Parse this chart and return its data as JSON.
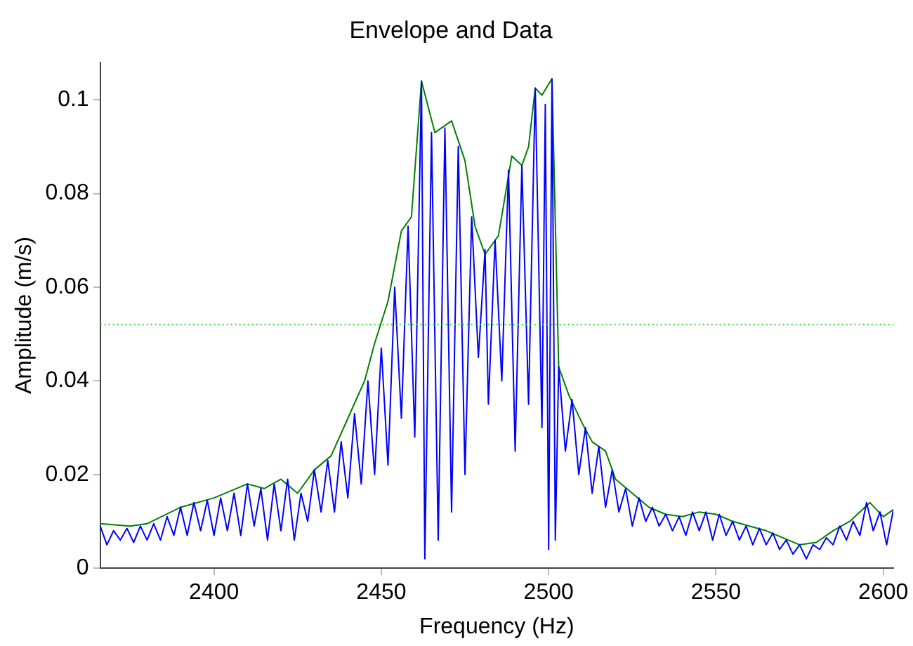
{
  "chart_data": {
    "type": "line",
    "title": "Envelope and Data",
    "xlabel": "Frequency (Hz)",
    "ylabel": "Amplitude (m/s)",
    "xlim": [
      2366,
      2603
    ],
    "xticks": [
      2400,
      2450,
      2500,
      2550,
      2600
    ],
    "ylim": [
      0,
      0.108
    ],
    "yticks": [
      0,
      0.02,
      0.04,
      0.06,
      0.08,
      0.1
    ],
    "grid": false,
    "legend": false,
    "marker": "none",
    "line_style": "solid",
    "ref_lines": [
      {
        "axis": "y",
        "value": 0.052,
        "color": "#33cc33",
        "line_style": "dotted"
      }
    ],
    "series": [
      {
        "color": "#0000ff",
        "x": [
          2366,
          2368,
          2370,
          2372,
          2374,
          2376,
          2378,
          2380,
          2382,
          2384,
          2386,
          2388,
          2390,
          2392,
          2394,
          2396,
          2398,
          2400,
          2402,
          2404,
          2406,
          2408,
          2410,
          2412,
          2414,
          2416,
          2418,
          2420,
          2422,
          2424,
          2426,
          2428,
          2430,
          2432,
          2434,
          2436,
          2438,
          2440,
          2442,
          2444,
          2446,
          2448,
          2450,
          2452,
          2454,
          2456,
          2458,
          2460,
          2462,
          2463,
          2465,
          2467,
          2469,
          2471,
          2473,
          2475,
          2477,
          2479,
          2481,
          2482,
          2484,
          2486,
          2488,
          2490,
          2492,
          2494,
          2496,
          2498,
          2499,
          2500,
          2501,
          2502,
          2503,
          2505,
          2507,
          2509,
          2511,
          2513,
          2515,
          2517,
          2519,
          2521,
          2523,
          2525,
          2527,
          2529,
          2531,
          2533,
          2535,
          2537,
          2539,
          2541,
          2543,
          2545,
          2547,
          2549,
          2551,
          2553,
          2555,
          2557,
          2559,
          2561,
          2563,
          2565,
          2567,
          2569,
          2571,
          2573,
          2575,
          2577,
          2579,
          2581,
          2583,
          2585,
          2587,
          2589,
          2591,
          2593,
          2595,
          2597,
          2599,
          2601,
          2603
        ],
        "values": [
          0.009,
          0.005,
          0.008,
          0.006,
          0.0085,
          0.0055,
          0.009,
          0.006,
          0.0095,
          0.006,
          0.011,
          0.007,
          0.013,
          0.007,
          0.014,
          0.008,
          0.0145,
          0.007,
          0.015,
          0.008,
          0.016,
          0.007,
          0.018,
          0.009,
          0.017,
          0.006,
          0.018,
          0.008,
          0.019,
          0.006,
          0.016,
          0.01,
          0.021,
          0.012,
          0.023,
          0.012,
          0.027,
          0.015,
          0.033,
          0.018,
          0.04,
          0.02,
          0.047,
          0.022,
          0.06,
          0.032,
          0.073,
          0.028,
          0.104,
          0.002,
          0.093,
          0.006,
          0.094,
          0.012,
          0.09,
          0.02,
          0.075,
          0.045,
          0.068,
          0.035,
          0.07,
          0.04,
          0.085,
          0.025,
          0.086,
          0.035,
          0.1025,
          0.03,
          0.099,
          0.004,
          0.1045,
          0.006,
          0.043,
          0.025,
          0.036,
          0.02,
          0.03,
          0.016,
          0.026,
          0.013,
          0.021,
          0.012,
          0.017,
          0.009,
          0.015,
          0.01,
          0.013,
          0.009,
          0.0115,
          0.008,
          0.011,
          0.007,
          0.012,
          0.008,
          0.012,
          0.006,
          0.0115,
          0.007,
          0.01,
          0.006,
          0.009,
          0.005,
          0.0085,
          0.005,
          0.0075,
          0.004,
          0.006,
          0.003,
          0.005,
          0.002,
          0.005,
          0.004,
          0.0065,
          0.005,
          0.009,
          0.006,
          0.01,
          0.007,
          0.014,
          0.008,
          0.012,
          0.005,
          0.0125
        ]
      },
      {
        "color": "#008000",
        "x": [
          2366,
          2375,
          2380,
          2390,
          2400,
          2410,
          2415,
          2420,
          2425,
          2430,
          2435,
          2440,
          2445,
          2448,
          2452,
          2456,
          2459,
          2462,
          2466,
          2471,
          2475,
          2478,
          2481,
          2485,
          2489,
          2492,
          2494,
          2496,
          2498,
          2501,
          2503,
          2506,
          2510,
          2513,
          2517,
          2520,
          2525,
          2530,
          2535,
          2540,
          2545,
          2550,
          2555,
          2560,
          2565,
          2570,
          2575,
          2580,
          2585,
          2590,
          2596,
          2600,
          2603
        ],
        "values": [
          0.0095,
          0.009,
          0.0095,
          0.013,
          0.015,
          0.018,
          0.017,
          0.019,
          0.016,
          0.021,
          0.024,
          0.032,
          0.04,
          0.048,
          0.057,
          0.072,
          0.075,
          0.104,
          0.093,
          0.0955,
          0.087,
          0.073,
          0.067,
          0.071,
          0.088,
          0.086,
          0.09,
          0.1025,
          0.101,
          0.1045,
          0.043,
          0.037,
          0.031,
          0.027,
          0.025,
          0.019,
          0.016,
          0.013,
          0.0115,
          0.011,
          0.012,
          0.0115,
          0.01,
          0.009,
          0.008,
          0.0065,
          0.005,
          0.0055,
          0.008,
          0.01,
          0.014,
          0.011,
          0.0125
        ]
      }
    ]
  }
}
